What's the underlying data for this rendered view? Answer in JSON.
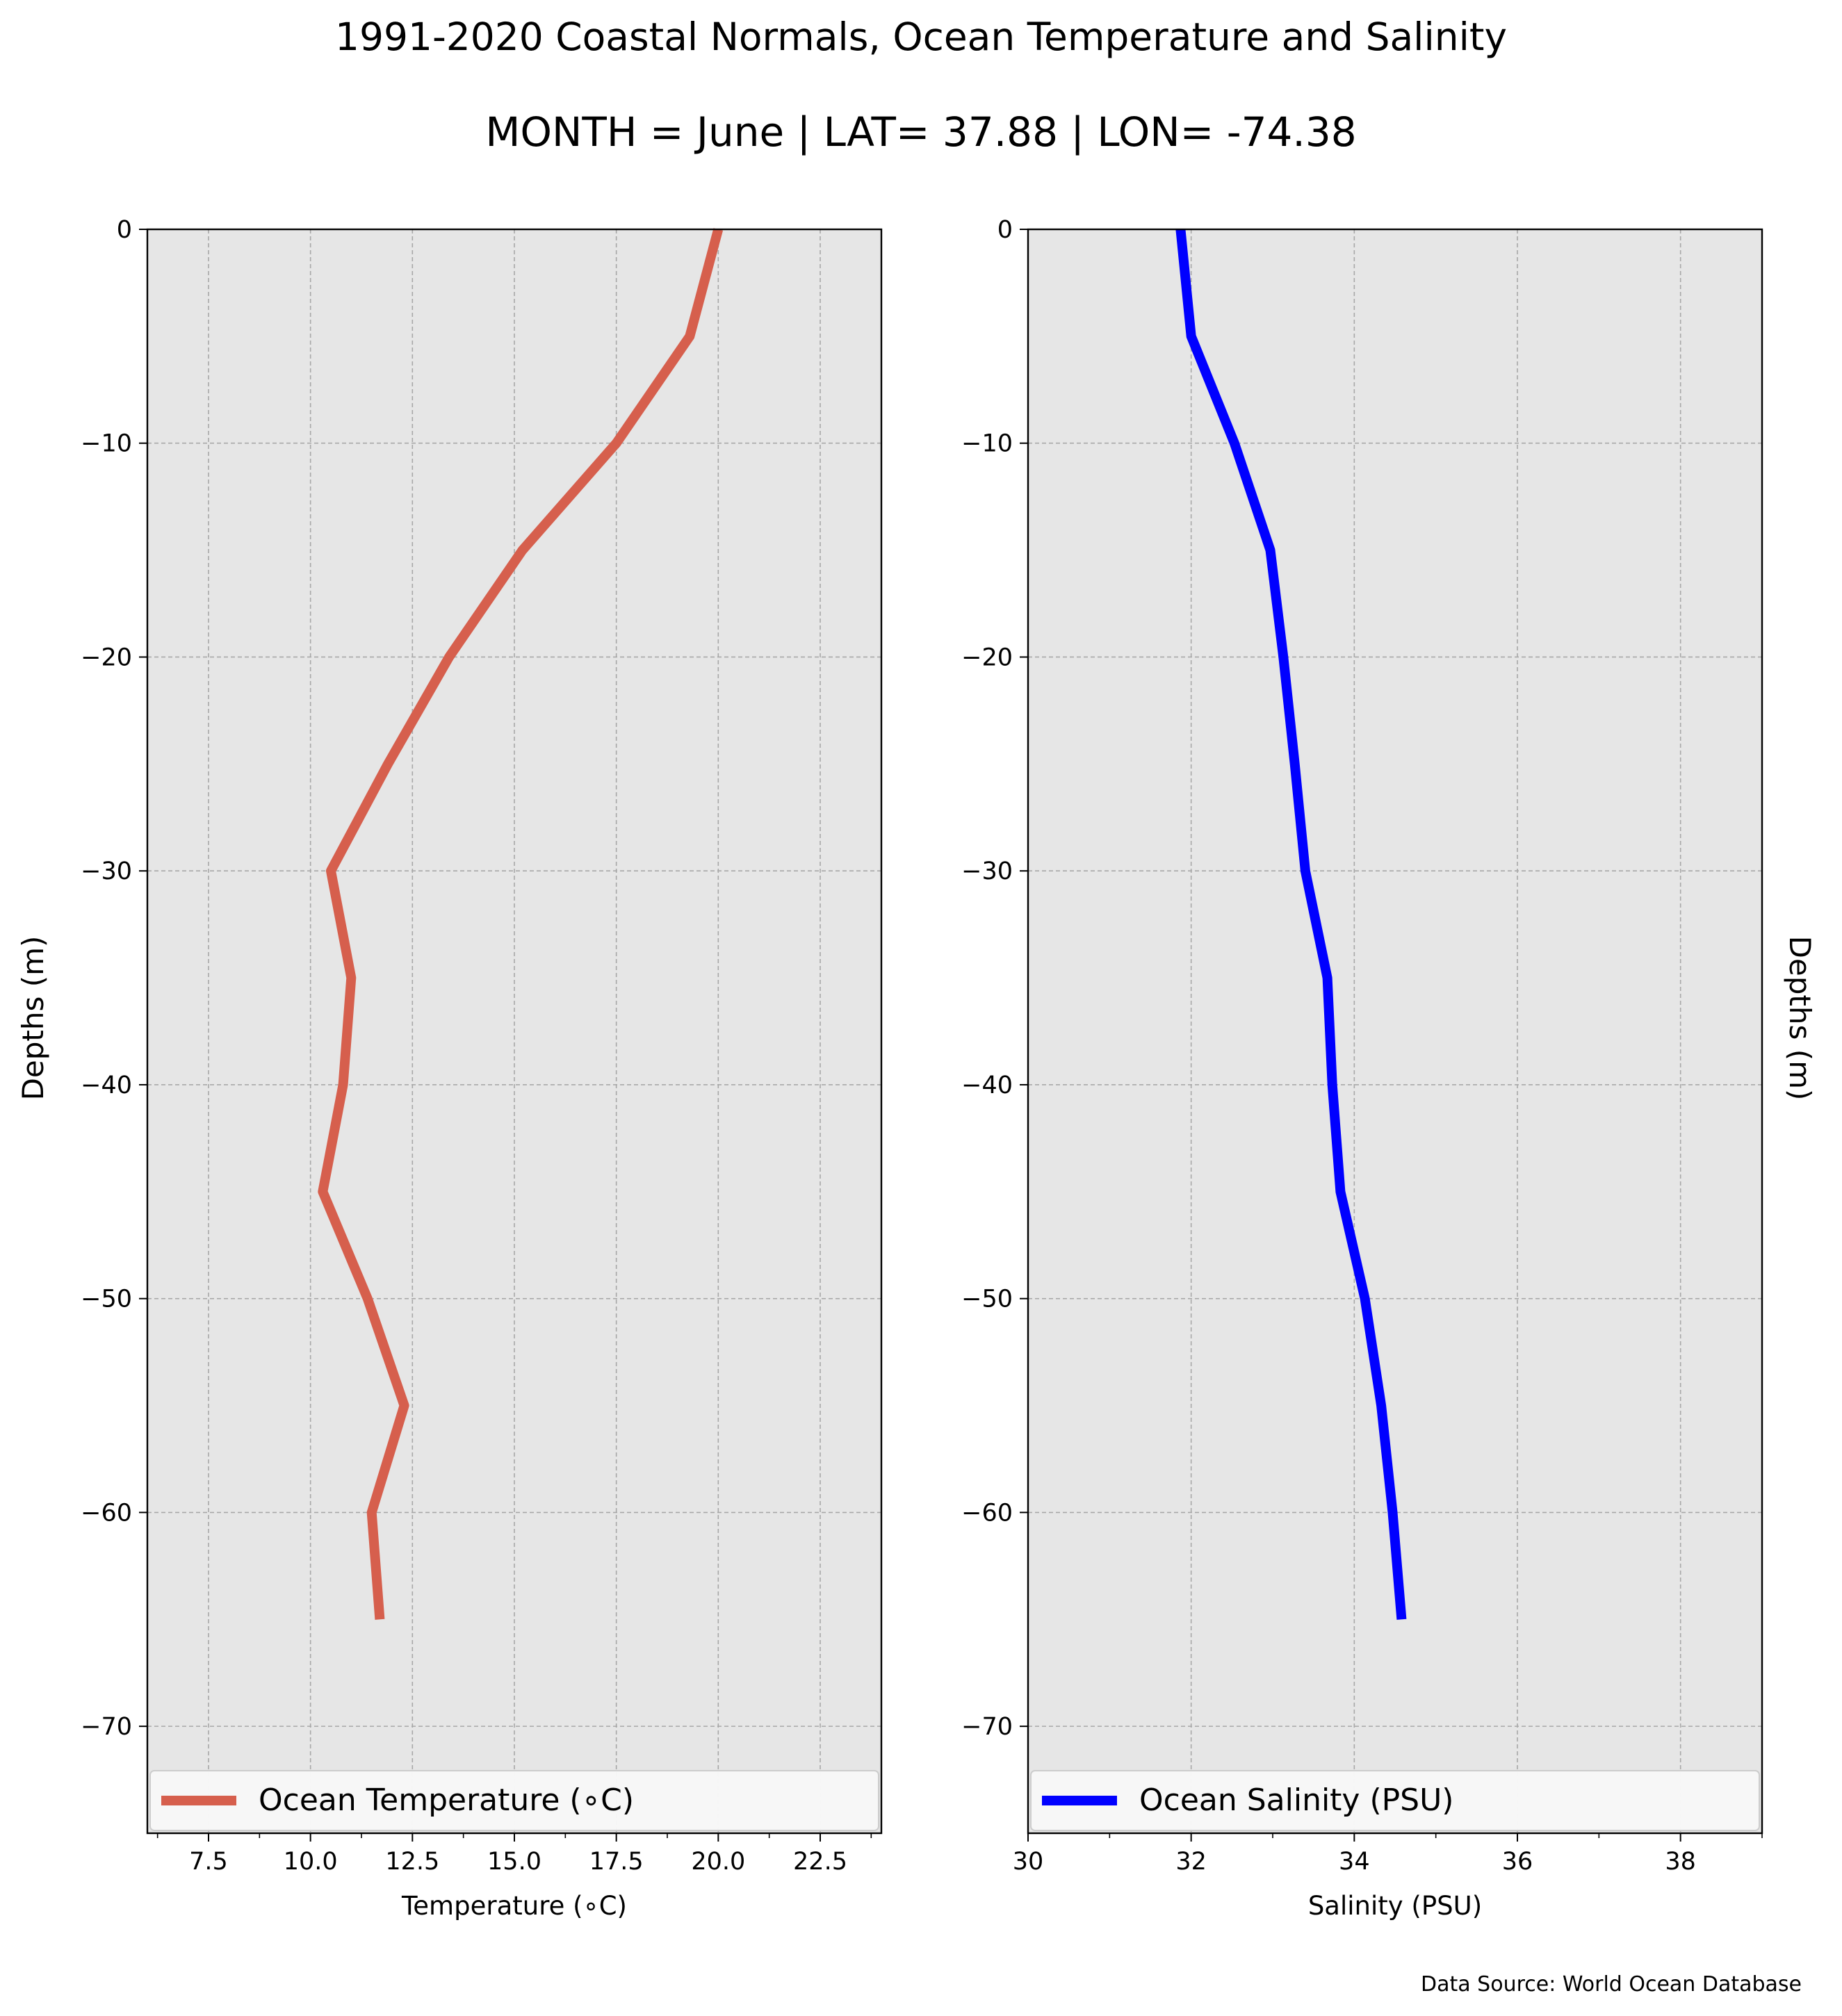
{
  "figure": {
    "title_line1": "1991-2020 Coastal Normals, Ocean Temperature and Salinity",
    "title_line2": "MONTH = June | LAT= 37.88 | LON= -74.38",
    "source_note": "Data Source: World Ocean Database",
    "background_color": "#e6e6e6",
    "grid": true
  },
  "chart_data": [
    {
      "type": "line",
      "xlabel": "Temperature ($^\\circ$C)",
      "xlabel_display": "Temperature (∘C)",
      "ylabel": "Depths (m)",
      "xlim": [
        6.0,
        24.0
      ],
      "ylim": [
        -75,
        0
      ],
      "xticks": [
        7.5,
        10.0,
        12.5,
        15.0,
        17.5,
        20.0,
        22.5
      ],
      "xtick_labels": [
        "7.5",
        "10.0",
        "12.5",
        "15.0",
        "17.5",
        "20.0",
        "22.5"
      ],
      "yticks": [
        0,
        -10,
        -20,
        -30,
        -40,
        -50,
        -60,
        -70
      ],
      "ytick_labels": [
        "0",
        "−10",
        "−20",
        "−30",
        "−40",
        "−50",
        "−60",
        "−70"
      ],
      "legend_position": "bottom",
      "series": [
        {
          "name": "Ocean Temperature (∘C)",
          "color": "#d65f4d",
          "x": [
            20.0,
            19.3,
            17.5,
            15.2,
            13.4,
            11.9,
            10.5,
            11.0,
            10.8,
            10.3,
            11.4,
            12.3,
            11.5,
            11.7
          ],
          "y": [
            0,
            -5,
            -10,
            -15,
            -20,
            -25,
            -30,
            -35,
            -40,
            -45,
            -50,
            -55,
            -60,
            -65
          ]
        }
      ]
    },
    {
      "type": "line",
      "xlabel": "Salinity (PSU)",
      "ylabel": "Depths (m)",
      "xlim": [
        30,
        39
      ],
      "ylim": [
        -75,
        0
      ],
      "xticks": [
        30,
        32,
        34,
        36,
        38
      ],
      "xtick_labels": [
        "30",
        "32",
        "34",
        "36",
        "38"
      ],
      "yticks": [
        0,
        -10,
        -20,
        -30,
        -40,
        -50,
        -60,
        -70
      ],
      "ytick_labels": [
        "0",
        "−10",
        "−20",
        "−30",
        "−40",
        "−50",
        "−60",
        "−70"
      ],
      "legend_position": "bottom",
      "series": [
        {
          "name": "Ocean Salinity (PSU)",
          "color": "#0000ff",
          "x": [
            31.87,
            32.0,
            32.53,
            32.97,
            33.13,
            33.27,
            33.4,
            33.67,
            33.73,
            33.83,
            34.13,
            34.33,
            34.47,
            34.58
          ],
          "y": [
            0,
            -5,
            -10,
            -15,
            -20,
            -25,
            -30,
            -35,
            -40,
            -45,
            -50,
            -55,
            -60,
            -65
          ]
        }
      ]
    }
  ]
}
